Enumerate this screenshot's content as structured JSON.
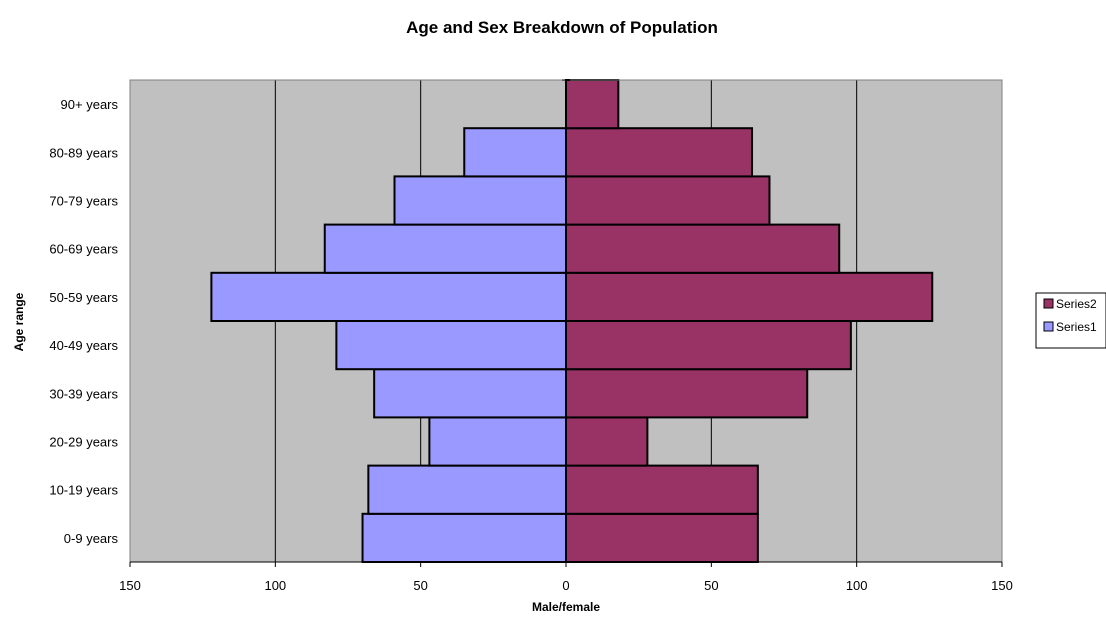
{
  "chart_data": {
    "type": "bar",
    "orientation": "horizontal",
    "title": "Age and Sex Breakdown of Population",
    "xlabel": "Male/female",
    "ylabel": "Age range",
    "categories": [
      "0-9 years",
      "10-19 years",
      "20-29 years",
      "30-39 years",
      "40-49 years",
      "50-59 years",
      "60-69 years",
      "70-79 years",
      "80-89 years ",
      "90+ years"
    ],
    "series": [
      {
        "name": "Series2",
        "values": [
          66,
          66,
          28,
          83,
          98,
          126,
          94,
          70,
          64,
          18
        ],
        "color": "#993366",
        "side": "right"
      },
      {
        "name": "Series1",
        "values": [
          70,
          68,
          47,
          66,
          79,
          122,
          83,
          59,
          35,
          0
        ],
        "color": "#9999FF",
        "side": "left"
      }
    ],
    "xlim": [
      -150,
      150
    ],
    "xticks": [
      -150,
      -100,
      -50,
      0,
      50,
      100,
      150
    ],
    "xtick_labels": [
      "150",
      "100",
      "50",
      "0",
      "50",
      "100",
      "150"
    ],
    "grid": "vertical",
    "plot_background": "#C0C0C0",
    "legend_position": "right"
  }
}
